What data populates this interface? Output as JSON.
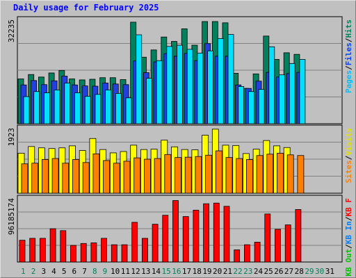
{
  "chart_data": {
    "title": "Daily usage for February 2025",
    "type": "bar",
    "categories": [
      "1",
      "2",
      "3",
      "4",
      "5",
      "6",
      "7",
      "8",
      "9",
      "10",
      "11",
      "12",
      "13",
      "14",
      "15",
      "16",
      "17",
      "18",
      "19",
      "20",
      "21",
      "22",
      "23",
      "24",
      "25",
      "26",
      "27",
      "28",
      "29",
      "30",
      "31"
    ],
    "weekend_days": [
      "1",
      "2",
      "8",
      "9",
      "15",
      "16",
      "22",
      "23",
      "29",
      "30"
    ],
    "panels": [
      {
        "name": "hits-pages-files",
        "max_label": "32235",
        "ymax": 33500,
        "legend": [
          {
            "text": "Hits",
            "color": "#00805c"
          },
          {
            "text": "/",
            "color": "#000000"
          },
          {
            "text": "Files",
            "color": "#0040ff"
          },
          {
            "text": "/",
            "color": "#000000"
          },
          {
            "text": "Pages",
            "color": "#00c0ff"
          }
        ],
        "series": [
          {
            "name": "Hits",
            "color": "#00805c",
            "values": [
              14200,
              15600,
              14800,
              16100,
              16900,
              14200,
              13900,
              14100,
              14600,
              14600,
              14000,
              32200,
              21100,
              23400,
              27500,
              26100,
              30100,
              24900,
              32400,
              32400,
              32000,
              16000,
              11200,
              15800,
              27800,
              20400,
              22500,
              22000,
              null,
              null,
              null
            ]
          },
          {
            "name": "Files",
            "color": "#2040e0",
            "values": [
              12300,
              13700,
              12400,
              13600,
              15100,
              12300,
              12000,
              11900,
              12900,
              12600,
              12400,
              19900,
              16200,
              19600,
              22200,
              21400,
              22300,
              20000,
              25400,
              21400,
              21400,
              12300,
              11200,
              13500,
              16300,
              14800,
              15900,
              16300,
              null,
              null,
              null
            ]
          },
          {
            "name": "Pages",
            "color": "#00e0ff",
            "values": [
              8600,
              10200,
              9800,
              10700,
              12900,
              9800,
              8700,
              9300,
              10700,
              9600,
              8200,
              28200,
              14400,
              20000,
              24500,
              24900,
              23600,
              22400,
              23100,
              27000,
              28300,
              11800,
              10200,
              10900,
              24400,
              15500,
              19100,
              20400,
              null,
              null,
              null
            ]
          }
        ]
      },
      {
        "name": "visits-sites",
        "max_label": "1923",
        "ymax": 2000,
        "legend": [
          {
            "text": "Visits",
            "color": "#e0e000"
          },
          {
            "text": "/",
            "color": "#000000"
          },
          {
            "text": "Sites",
            "color": "#ff8000"
          }
        ],
        "series": [
          {
            "name": "Visits",
            "color": "#ffff00",
            "values": [
              1200,
              1400,
              1360,
              1340,
              1360,
              1420,
              1280,
              1640,
              1310,
              1210,
              1250,
              1440,
              1310,
              1320,
              1590,
              1390,
              1310,
              1300,
              1740,
              1920,
              1440,
              1430,
              1190,
              1320,
              1580,
              1420,
              1370,
              null,
              null,
              null,
              null
            ]
          },
          {
            "name": "Sites",
            "color": "#ff8000",
            "values": [
              880,
              900,
              1010,
              1040,
              900,
              1010,
              920,
              1180,
              980,
              900,
              960,
              1060,
              1020,
              1040,
              1160,
              1070,
              1080,
              1100,
              1140,
              1270,
              1070,
              1040,
              1010,
              1130,
              1170,
              1200,
              1150,
              1130,
              null,
              null,
              null
            ]
          }
        ]
      },
      {
        "name": "kbytes",
        "max_label": "96185174",
        "ymax": 102000000,
        "legend": [
          {
            "text": "KB F",
            "color": "#ff0000"
          },
          {
            "text": "/",
            "color": "#000000"
          },
          {
            "text": "KB In",
            "color": "#0080ff"
          },
          {
            "text": "/",
            "color": "#000000"
          },
          {
            "text": "KB Out",
            "color": "#00c000"
          }
        ],
        "series": [
          {
            "name": "KB F",
            "color": "#ff0000",
            "values": [
              34000000,
              37000000,
              37000000,
              52000000,
              49000000,
              26000000,
              29000000,
              30000000,
              37000000,
              27000000,
              27000000,
              62000000,
              37000000,
              59000000,
              73000000,
              96000000,
              71000000,
              81000000,
              91000000,
              92000000,
              87000000,
              19000000,
              27000000,
              31000000,
              75000000,
              51000000,
              58000000,
              82000000,
              null,
              null,
              null
            ]
          }
        ]
      }
    ]
  }
}
